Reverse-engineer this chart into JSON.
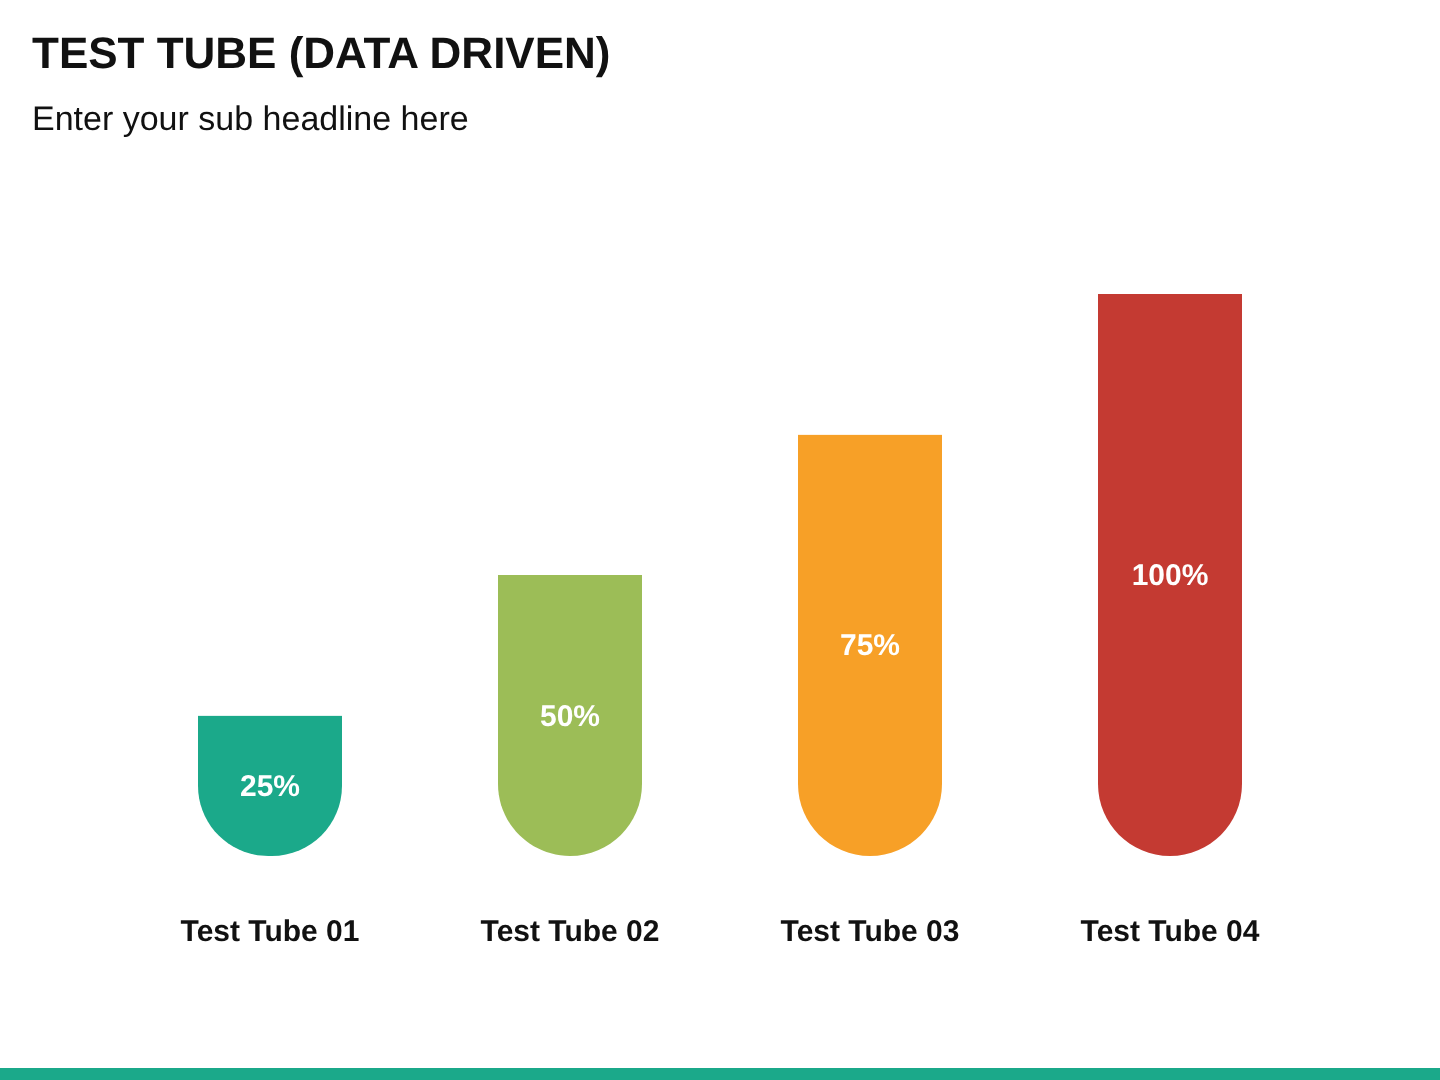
{
  "chart_data": {
    "type": "bar",
    "title": "TEST TUBE (DATA DRIVEN)",
    "subtitle": "Enter your sub headline here",
    "categories": [
      "Test Tube 01",
      "Test Tube 02",
      "Test Tube 03",
      "Test Tube 04"
    ],
    "values": [
      25,
      50,
      75,
      100
    ],
    "colors": [
      "#1ba98a",
      "#9cbd57",
      "#f7a027",
      "#c43a32"
    ],
    "value_labels": [
      "25%",
      "50%",
      "75%",
      "100%"
    ]
  }
}
